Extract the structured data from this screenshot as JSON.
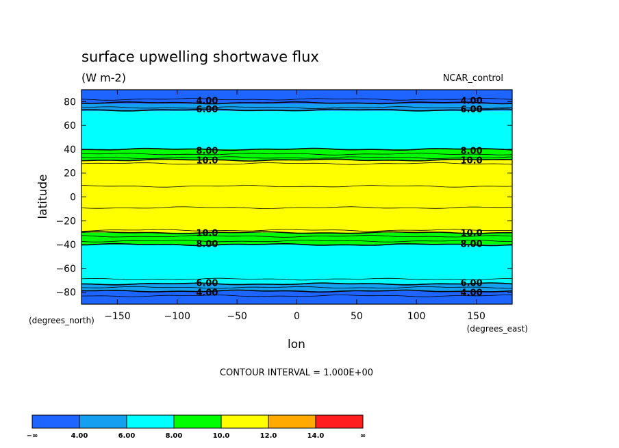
{
  "chart_data": {
    "type": "contour",
    "title": "surface upwelling shortwave flux",
    "units": "(W m-2)",
    "dataset": "NCAR_control",
    "xlabel": "lon",
    "ylabel": "latitude",
    "x_units": "(degrees_east)",
    "y_units": "(degrees_north)",
    "xlim": [
      -180,
      180
    ],
    "ylim": [
      -90,
      90
    ],
    "x_ticks": [
      -150,
      -100,
      -50,
      0,
      50,
      100,
      150
    ],
    "x_tick_labels": [
      "−150",
      "−100",
      "−50",
      "0",
      "50",
      "100",
      "150"
    ],
    "y_ticks": [
      -80,
      -60,
      -40,
      -20,
      0,
      20,
      40,
      60,
      80
    ],
    "y_tick_labels": [
      "−80",
      "−60",
      "−40",
      "−20",
      "0",
      "20",
      "40",
      "60",
      "80"
    ],
    "contour_interval_text": "CONTOUR INTERVAL = 1.000E+00",
    "fill_bands": [
      {
        "lat_min": 78,
        "lat_max": 90,
        "color": "#1e64ff"
      },
      {
        "lat_min": 72,
        "lat_max": 78,
        "color": "#14a0f0"
      },
      {
        "lat_min": 40,
        "lat_max": 72,
        "color": "#00ffff"
      },
      {
        "lat_min": 31,
        "lat_max": 40,
        "color": "#00ff00"
      },
      {
        "lat_min": -30,
        "lat_max": 31,
        "color": "#ffff00"
      },
      {
        "lat_min": -40,
        "lat_max": -30,
        "color": "#00ff00"
      },
      {
        "lat_min": -73,
        "lat_max": -40,
        "color": "#00ffff"
      },
      {
        "lat_min": -79,
        "lat_max": -73,
        "color": "#14a0f0"
      },
      {
        "lat_min": -90,
        "lat_max": -79,
        "color": "#1e64ff"
      }
    ],
    "contour_lines": [
      {
        "lat": 82,
        "bold": false
      },
      {
        "lat": 79,
        "bold": true
      },
      {
        "lat": 75,
        "bold": false
      },
      {
        "lat": 73,
        "bold": true
      },
      {
        "lat": 40,
        "bold": true
      },
      {
        "lat": 36,
        "bold": false
      },
      {
        "lat": 33,
        "bold": false
      },
      {
        "lat": 31,
        "bold": true
      },
      {
        "lat": 28,
        "bold": false
      },
      {
        "lat": 9,
        "bold": false
      },
      {
        "lat": -9,
        "bold": false
      },
      {
        "lat": -28,
        "bold": false
      },
      {
        "lat": -30,
        "bold": true
      },
      {
        "lat": -33,
        "bold": false
      },
      {
        "lat": -37,
        "bold": false
      },
      {
        "lat": -40,
        "bold": true
      },
      {
        "lat": -69,
        "bold": false
      },
      {
        "lat": -73,
        "bold": true
      },
      {
        "lat": -76,
        "bold": false
      },
      {
        "lat": -79,
        "bold": true
      },
      {
        "lat": -83,
        "bold": false
      }
    ],
    "contour_labels": [
      {
        "text": "4.00",
        "lon": -75,
        "lat": 81
      },
      {
        "text": "6.00",
        "lon": -75,
        "lat": 74
      },
      {
        "text": "8.00",
        "lon": -75,
        "lat": 39
      },
      {
        "text": "10.0",
        "lon": -75,
        "lat": 31
      },
      {
        "text": "10.0",
        "lon": -75,
        "lat": -30
      },
      {
        "text": "8.00",
        "lon": -75,
        "lat": -39
      },
      {
        "text": "6.00",
        "lon": -75,
        "lat": -72
      },
      {
        "text": "4.00",
        "lon": -75,
        "lat": -80
      },
      {
        "text": "4.00",
        "lon": 146,
        "lat": 81
      },
      {
        "text": "6.00",
        "lon": 146,
        "lat": 74
      },
      {
        "text": "8.00",
        "lon": 146,
        "lat": 39
      },
      {
        "text": "10.0",
        "lon": 146,
        "lat": 31
      },
      {
        "text": "10.0",
        "lon": 146,
        "lat": -30
      },
      {
        "text": "8.00",
        "lon": 146,
        "lat": -39
      },
      {
        "text": "6.00",
        "lon": 146,
        "lat": -72
      },
      {
        "text": "4.00",
        "lon": 146,
        "lat": -80
      }
    ],
    "colorbar": {
      "colors": [
        "#1e64ff",
        "#14a0f0",
        "#00ffff",
        "#00ff00",
        "#ffff00",
        "#ffaa00",
        "#ff1e1e"
      ],
      "labels": [
        "−∞",
        "4.00",
        "6.00",
        "8.00",
        "10.0",
        "12.0",
        "14.0",
        "∞"
      ]
    }
  }
}
